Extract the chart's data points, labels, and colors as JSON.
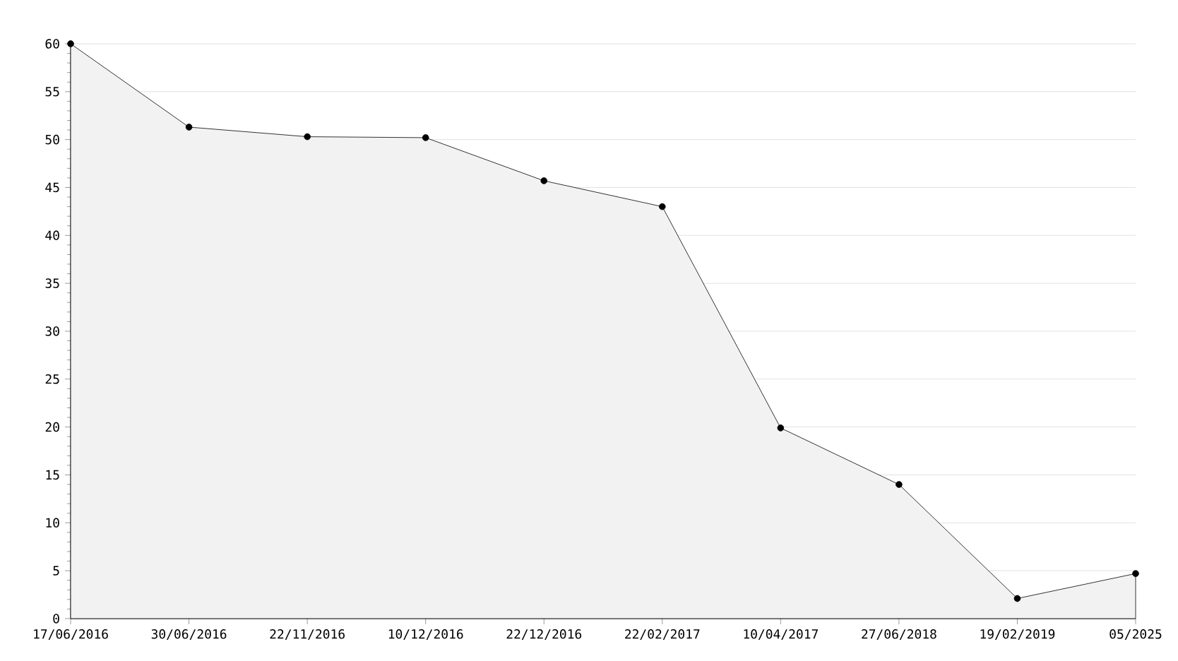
{
  "chart_data": {
    "type": "area",
    "categories": [
      "17/06/2016",
      "30/06/2016",
      "22/11/2016",
      "10/12/2016",
      "22/12/2016",
      "22/02/2017",
      "10/04/2017",
      "27/06/2018",
      "19/02/2019",
      "05/2025"
    ],
    "values": [
      60,
      51.3,
      50.3,
      50.2,
      45.7,
      43.0,
      19.9,
      14.0,
      2.1,
      4.7
    ],
    "color": "#f2f2f2",
    "ylim": [
      0,
      60
    ],
    "yticks": [
      0,
      5,
      10,
      15,
      20,
      25,
      30,
      35,
      40,
      45,
      50,
      55,
      60
    ],
    "grid": "y",
    "marker": "circle"
  }
}
